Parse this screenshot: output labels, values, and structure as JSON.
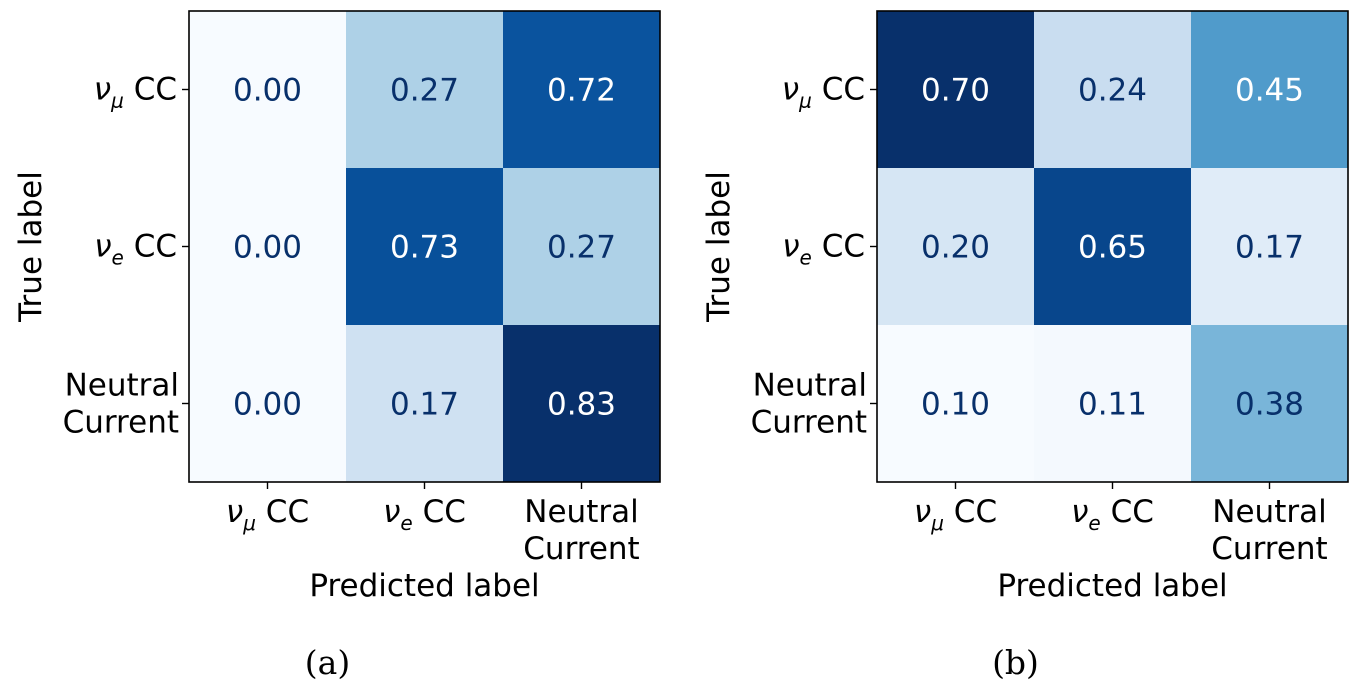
{
  "chart_data": [
    {
      "type": "heatmap",
      "panel_label": "(a)",
      "xlabel": "Predicted label",
      "ylabel": "True label",
      "x_categories": [
        {
          "symbol": "ν",
          "sub": "μ",
          "rest": " CC"
        },
        {
          "symbol": "ν",
          "sub": "e",
          "rest": " CC"
        },
        {
          "lines": [
            "Neutral",
            "Current"
          ]
        }
      ],
      "y_categories": [
        {
          "symbol": "ν",
          "sub": "μ",
          "rest": " CC"
        },
        {
          "symbol": "ν",
          "sub": "e",
          "rest": " CC"
        },
        {
          "lines": [
            "Neutral",
            "Current"
          ]
        }
      ],
      "values": [
        [
          0.0,
          0.27,
          0.72
        ],
        [
          0.0,
          0.73,
          0.27
        ],
        [
          0.0,
          0.17,
          0.83
        ]
      ],
      "labels": [
        [
          "0.00",
          "0.27",
          "0.72"
        ],
        [
          "0.00",
          "0.73",
          "0.27"
        ],
        [
          "0.00",
          "0.17",
          "0.83"
        ]
      ],
      "colormap": "Blues",
      "vmin": 0.0,
      "vmax": 0.83
    },
    {
      "type": "heatmap",
      "panel_label": "(b)",
      "xlabel": "Predicted label",
      "ylabel": "True label",
      "x_categories": [
        {
          "symbol": "ν",
          "sub": "μ",
          "rest": " CC"
        },
        {
          "symbol": "ν",
          "sub": "e",
          "rest": " CC"
        },
        {
          "lines": [
            "Neutral",
            "Current"
          ]
        }
      ],
      "y_categories": [
        {
          "symbol": "ν",
          "sub": "μ",
          "rest": " CC"
        },
        {
          "symbol": "ν",
          "sub": "e",
          "rest": " CC"
        },
        {
          "lines": [
            "Neutral",
            "Current"
          ]
        }
      ],
      "values": [
        [
          0.7,
          0.24,
          0.45
        ],
        [
          0.2,
          0.65,
          0.17
        ],
        [
          0.1,
          0.11,
          0.38
        ]
      ],
      "labels": [
        [
          "0.70",
          "0.24",
          "0.45"
        ],
        [
          "0.20",
          "0.65",
          "0.17"
        ],
        [
          "0.10",
          "0.11",
          "0.38"
        ]
      ],
      "colormap": "Blues",
      "vmin": 0.1,
      "vmax": 0.7
    }
  ],
  "colors": {
    "blues_scale": [
      "#f7fbff",
      "#deebf7",
      "#c6dbef",
      "#9ecae1",
      "#6baed6",
      "#4292c6",
      "#2171b5",
      "#08519c",
      "#08306b"
    ],
    "text_dark": "#08306b",
    "text_light": "#ffffff",
    "frame": "#000000"
  }
}
